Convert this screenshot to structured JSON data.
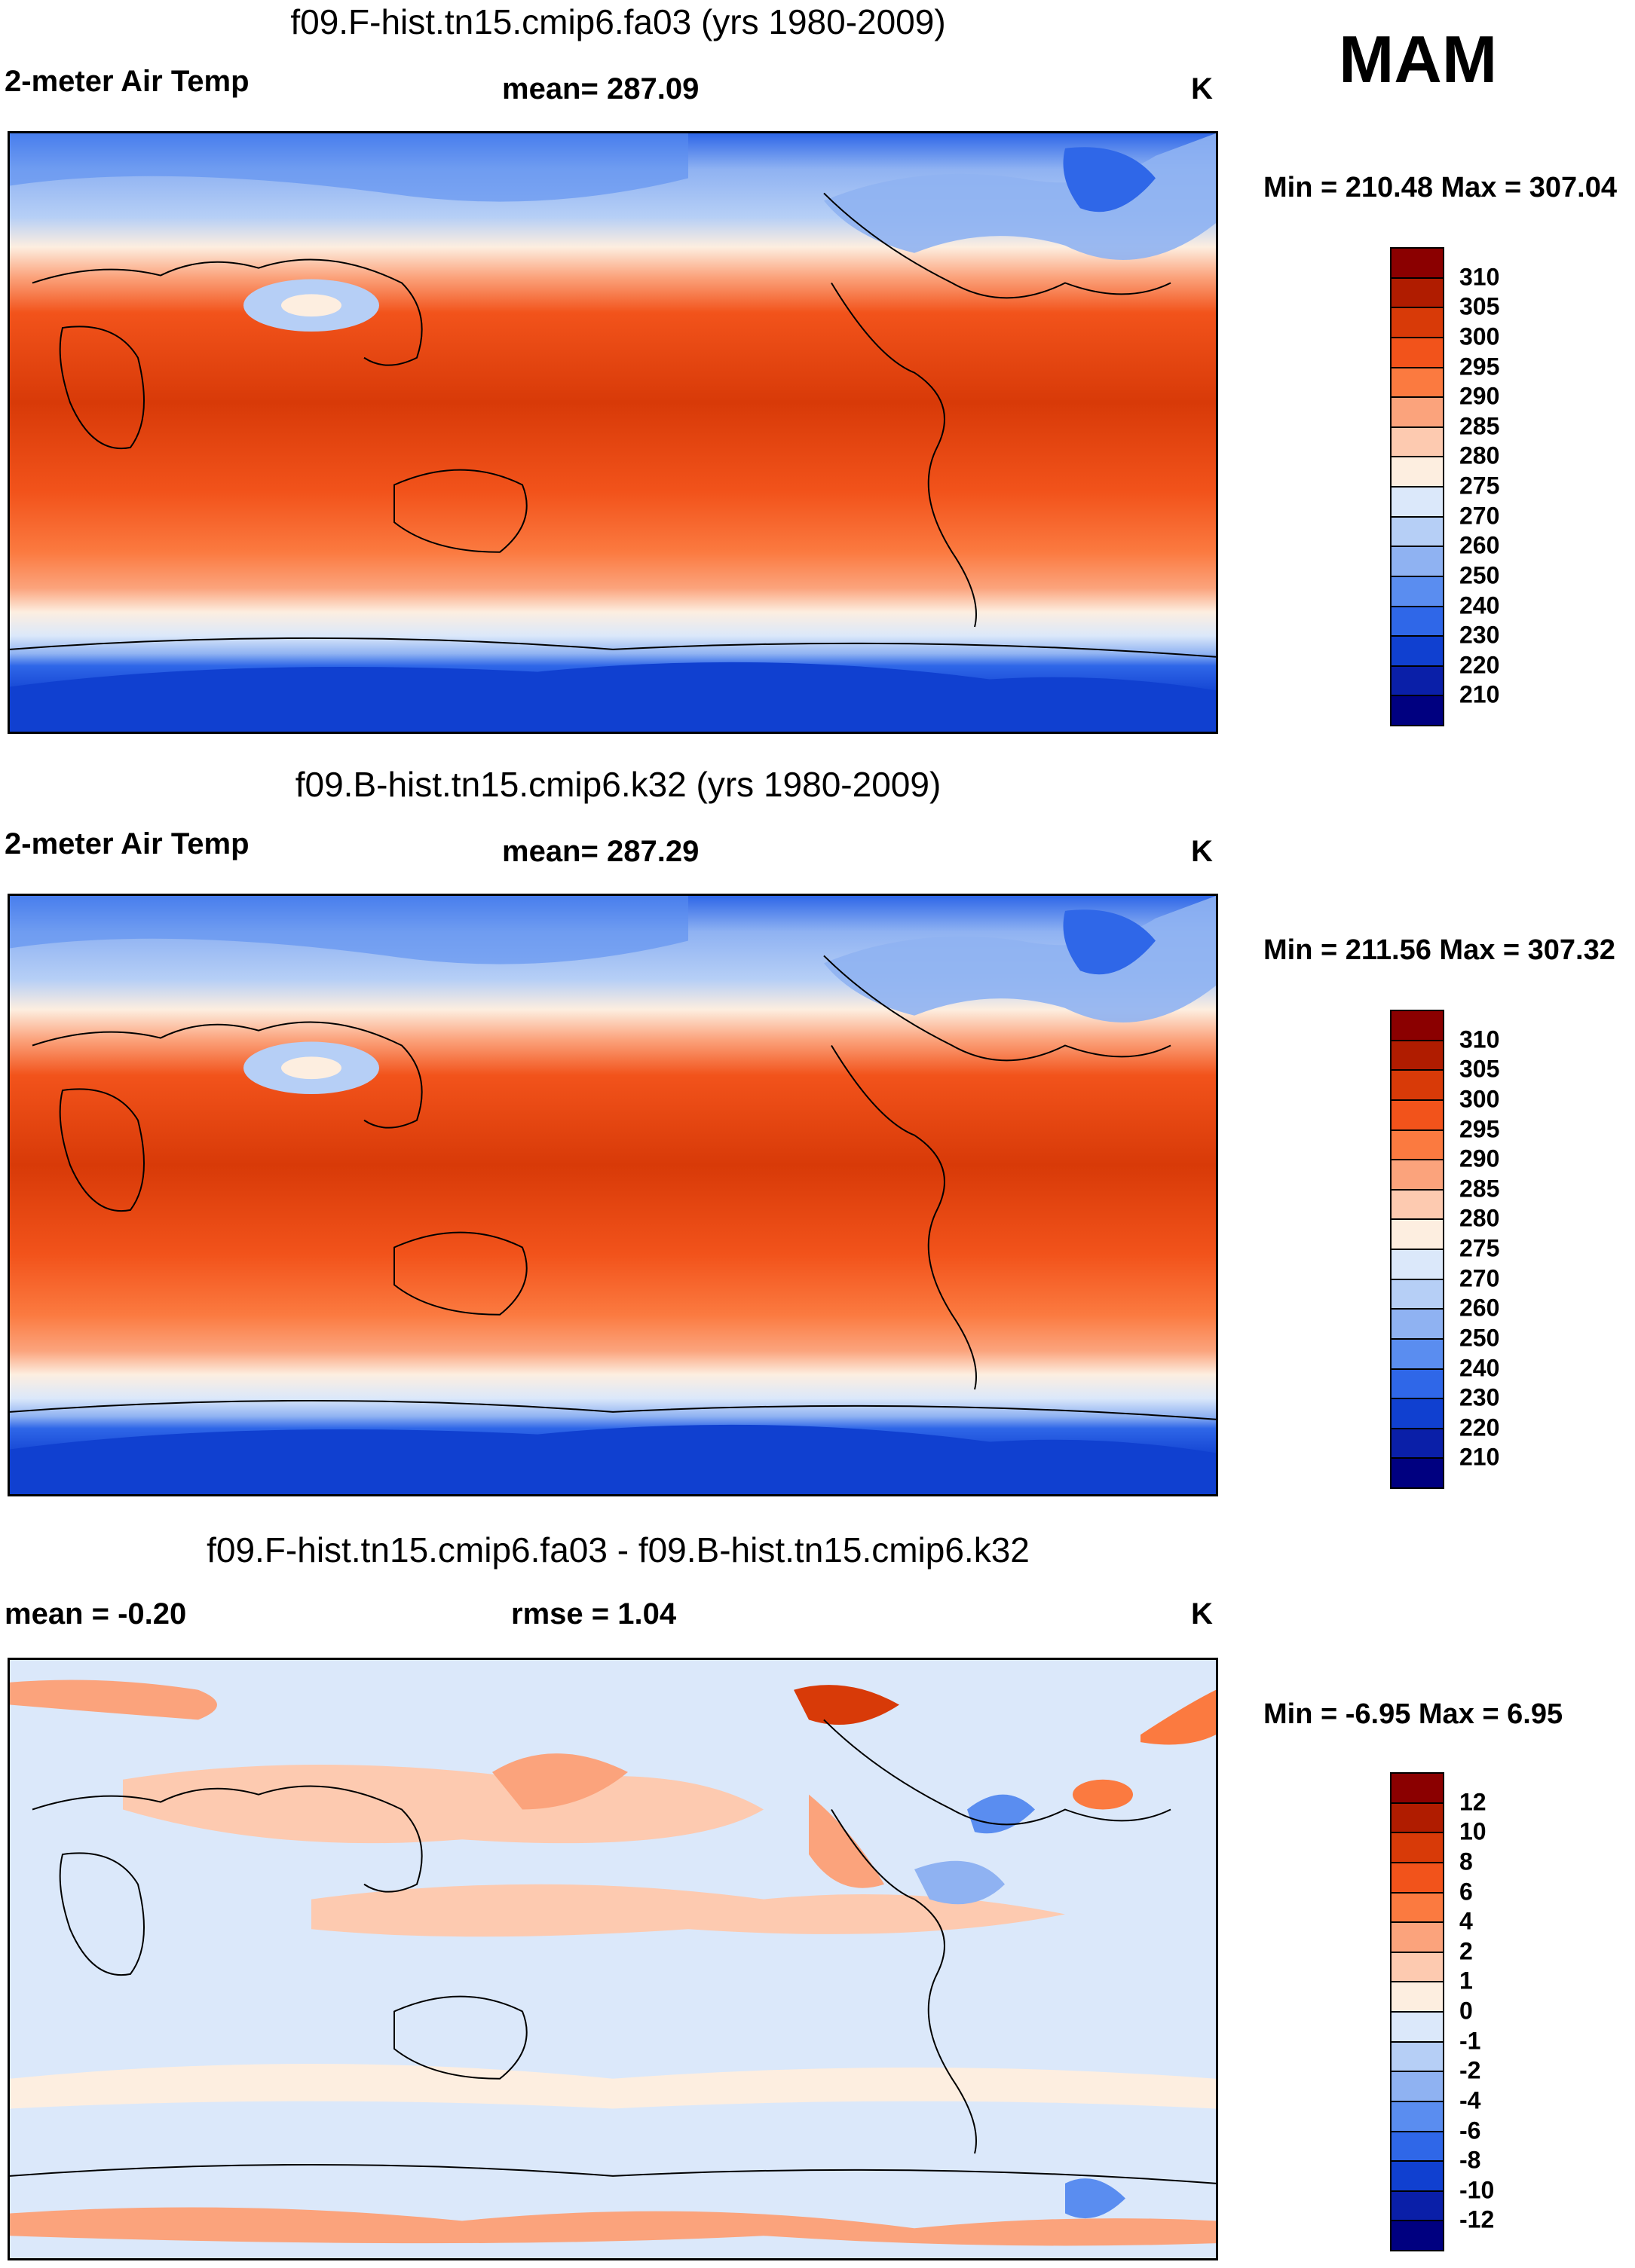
{
  "season": "MAM",
  "panels": [
    {
      "title": "f09.F-hist.tn15.cmip6.fa03 (yrs 1980-2009)",
      "left_label": "2-meter Air Temp",
      "center_label": "mean= 287.09",
      "units": "K",
      "minmax": "Min = 210.48 Max = 307.04",
      "colorbar": {
        "levels": [
          "310",
          "305",
          "300",
          "295",
          "290",
          "285",
          "280",
          "275",
          "270",
          "260",
          "250",
          "240",
          "230",
          "220",
          "210"
        ],
        "colors": [
          "#8b0000",
          "#b01c00",
          "#d83a08",
          "#f2531b",
          "#fb7a40",
          "#fba37c",
          "#fdcab0",
          "#fdeee0",
          "#dbe8fa",
          "#b6cff6",
          "#8fb2f2",
          "#5a8df0",
          "#2f67e8",
          "#1040d0",
          "#0a1fa8",
          "#000080"
        ]
      },
      "chart_data": {
        "type": "heatmap",
        "variable": "2-meter Air Temp",
        "units": "K",
        "mean": 287.09,
        "min": 210.48,
        "max": 307.04
      }
    },
    {
      "title": "f09.B-hist.tn15.cmip6.k32 (yrs 1980-2009)",
      "left_label": "2-meter Air Temp",
      "center_label": "mean= 287.29",
      "units": "K",
      "minmax": "Min = 211.56 Max = 307.32",
      "colorbar": {
        "levels": [
          "310",
          "305",
          "300",
          "295",
          "290",
          "285",
          "280",
          "275",
          "270",
          "260",
          "250",
          "240",
          "230",
          "220",
          "210"
        ],
        "colors": [
          "#8b0000",
          "#b01c00",
          "#d83a08",
          "#f2531b",
          "#fb7a40",
          "#fba37c",
          "#fdcab0",
          "#fdeee0",
          "#dbe8fa",
          "#b6cff6",
          "#8fb2f2",
          "#5a8df0",
          "#2f67e8",
          "#1040d0",
          "#0a1fa8",
          "#000080"
        ]
      },
      "chart_data": {
        "type": "heatmap",
        "variable": "2-meter Air Temp",
        "units": "K",
        "mean": 287.29,
        "min": 211.56,
        "max": 307.32
      }
    },
    {
      "title": "f09.F-hist.tn15.cmip6.fa03 - f09.B-hist.tn15.cmip6.k32",
      "left_label": "mean =  -0.20",
      "center_label": "rmse =   1.04",
      "units": "K",
      "minmax": "Min =  -6.95 Max =   6.95",
      "colorbar": {
        "levels": [
          "12",
          "10",
          "8",
          "6",
          "4",
          "2",
          "1",
          "0",
          "-1",
          "-2",
          "-4",
          "-6",
          "-8",
          "-10",
          "-12"
        ],
        "colors": [
          "#8b0000",
          "#b01c00",
          "#d83a08",
          "#f2531b",
          "#fb7a40",
          "#fba37c",
          "#fdcab0",
          "#fdeee0",
          "#dbe8fa",
          "#b6cff6",
          "#8fb2f2",
          "#5a8df0",
          "#2f67e8",
          "#1040d0",
          "#0a1fa8",
          "#000080"
        ]
      },
      "chart_data": {
        "type": "heatmap",
        "variable": "difference",
        "units": "K",
        "mean": -0.2,
        "rmse": 1.04,
        "min": -6.95,
        "max": 6.95
      }
    }
  ]
}
